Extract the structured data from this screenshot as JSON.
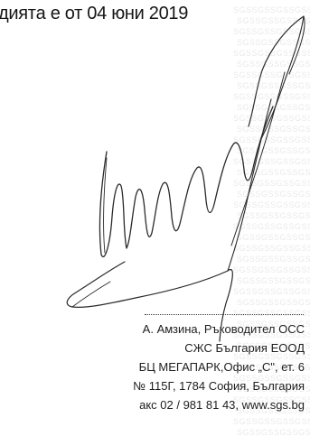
{
  "document": {
    "top_line": "диятa е от 04 юни  2019",
    "watermark_text": "SGSSGSSGSSGSSGSSGSSGSSGS",
    "signatory": {
      "name_title": "А. Амзина, Ръководител ОСС"
    },
    "company": {
      "name": "СЖС България ЕООД",
      "building": "БЦ МЕГАПАРК,Офис „С\", ет. 6",
      "address": "№ 115Г, 1784 София, България",
      "contact": "акс 02 / 981 81 43,    www.sgs.bg"
    }
  },
  "colors": {
    "text": "#1c1c1c",
    "signature_ink": "#2a2a2a",
    "watermark": "#b4b4b4"
  }
}
